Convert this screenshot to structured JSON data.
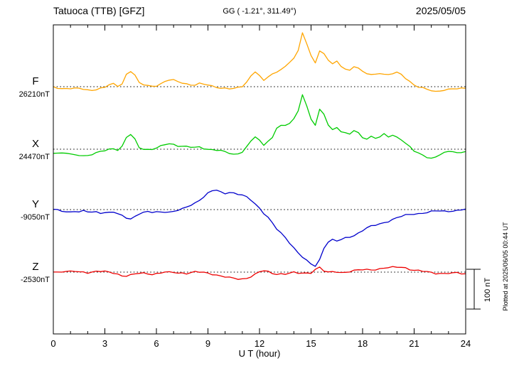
{
  "header": {
    "title": "Tatuoca (TTB)  [GFZ]",
    "gg_coords": "GG ( -1.21°, 311.49°)",
    "date": "2025/05/05"
  },
  "footer": {
    "xlabel": "U T (hour)"
  },
  "side": {
    "plotted_at": "Plotted at 2025/06/05 00:44 UT",
    "scale_label": "100 nT"
  },
  "chart_data": {
    "type": "line",
    "title": "Tatuoca (TTB) [GFZ] magnetogram 2025/05/05",
    "xlabel": "U T (hour)",
    "x_range": [
      0,
      24
    ],
    "x_ticks": [
      0,
      3,
      6,
      9,
      12,
      15,
      18,
      21,
      24
    ],
    "minor_tick_hours": 1,
    "x_step_hours": 0.25,
    "scale_bar_nT": 100,
    "grid": "dotted-baselines",
    "legend_position": "left-of-axis",
    "series": [
      {
        "name": "F",
        "color": "#FFA500",
        "baseline_label": "26210nT",
        "baseline_nT": 26210,
        "offsets_nT": [
          0,
          -2,
          -4,
          -3,
          -5,
          -6,
          -5,
          -7,
          -8,
          -7,
          -6,
          -4,
          -2,
          3,
          6,
          2,
          8,
          32,
          40,
          28,
          8,
          4,
          2,
          2,
          4,
          8,
          13,
          16,
          15,
          12,
          10,
          8,
          6,
          5,
          7,
          5,
          3,
          1,
          0,
          -2,
          -3,
          -5,
          -6,
          -4,
          0,
          12,
          28,
          40,
          28,
          14,
          24,
          30,
          36,
          46,
          52,
          62,
          72,
          88,
          134,
          108,
          78,
          62,
          92,
          82,
          66,
          56,
          62,
          52,
          46,
          42,
          52,
          46,
          36,
          32,
          30,
          32,
          36,
          32,
          30,
          32,
          34,
          30,
          22,
          14,
          6,
          0,
          -4,
          -8,
          -11,
          -13,
          -9,
          -7,
          -6,
          -5,
          -7,
          -6,
          -4
        ]
      },
      {
        "name": "X",
        "color": "#00CC00",
        "baseline_label": "24470nT",
        "baseline_nT": 24470,
        "offsets_nT": [
          -8,
          -10,
          -12,
          -11,
          -13,
          -14,
          -13,
          -15,
          -16,
          -14,
          -11,
          -7,
          -3,
          1,
          3,
          -1,
          6,
          28,
          36,
          24,
          5,
          2,
          0,
          0,
          2,
          6,
          11,
          14,
          13,
          10,
          8,
          6,
          4,
          3,
          5,
          3,
          1,
          0,
          -2,
          -5,
          -8,
          -11,
          -13,
          -10,
          -5,
          6,
          20,
          30,
          20,
          10,
          22,
          30,
          55,
          60,
          57,
          64,
          76,
          96,
          140,
          110,
          75,
          60,
          98,
          86,
          62,
          50,
          56,
          46,
          40,
          36,
          46,
          40,
          30,
          28,
          33,
          28,
          30,
          36,
          30,
          36,
          31,
          26,
          16,
          5,
          -6,
          -11,
          -16,
          -19,
          -21,
          -19,
          -13,
          -10,
          -8,
          -6,
          -9,
          -7,
          -3
        ]
      },
      {
        "name": "Y",
        "color": "#0000CC",
        "baseline_label": "-9050nT",
        "baseline_nT": -9050,
        "offsets_nT": [
          0,
          -2,
          -4,
          -3,
          -5,
          -4,
          -6,
          -5,
          -7,
          -6,
          -5,
          -7,
          -6,
          -8,
          -7,
          -12,
          -16,
          -20,
          -22,
          -16,
          -10,
          -8,
          -7,
          -8,
          -6,
          -5,
          -4,
          -6,
          -5,
          -3,
          0,
          6,
          12,
          18,
          25,
          32,
          40,
          46,
          48,
          44,
          42,
          45,
          42,
          38,
          35,
          30,
          24,
          15,
          5,
          -8,
          -20,
          -35,
          -50,
          -60,
          -70,
          -82,
          -95,
          -108,
          -120,
          -130,
          -138,
          -142,
          -125,
          -95,
          -80,
          -76,
          -80,
          -77,
          -72,
          -68,
          -64,
          -58,
          -52,
          -47,
          -43,
          -40,
          -36,
          -32,
          -28,
          -24,
          -21,
          -18,
          -15,
          -13,
          -10,
          -9,
          -8,
          -7,
          -6,
          -5,
          -4,
          -4,
          -3,
          -2,
          -2,
          -1,
          0
        ]
      },
      {
        "name": "Z",
        "color": "#EE0000",
        "baseline_label": "-2530nT",
        "baseline_nT": -2530,
        "offsets_nT": [
          2,
          1,
          2,
          1,
          0,
          1,
          0,
          1,
          0,
          1,
          2,
          1,
          0,
          -1,
          -2,
          -4,
          -8,
          -9,
          -8,
          -6,
          -4,
          -3,
          -3,
          -4,
          -3,
          -2,
          -1,
          -2,
          -1,
          -2,
          -1,
          -2,
          -1,
          0,
          -1,
          -2,
          -3,
          -4,
          -6,
          -9,
          -12,
          -15,
          -17,
          -18,
          -17,
          -14,
          -10,
          -5,
          0,
          2,
          0,
          -3,
          -4,
          -3,
          -4,
          -3,
          -2,
          -4,
          -3,
          -2,
          0,
          8,
          12,
          2,
          -2,
          0,
          1,
          0,
          1,
          2,
          3,
          4,
          5,
          6,
          7,
          8,
          9,
          10,
          10,
          11,
          12,
          13,
          12,
          8,
          5,
          3,
          1,
          0,
          -1,
          -2,
          -2,
          -3,
          -3,
          -4,
          -3,
          -4,
          -4
        ]
      }
    ]
  }
}
